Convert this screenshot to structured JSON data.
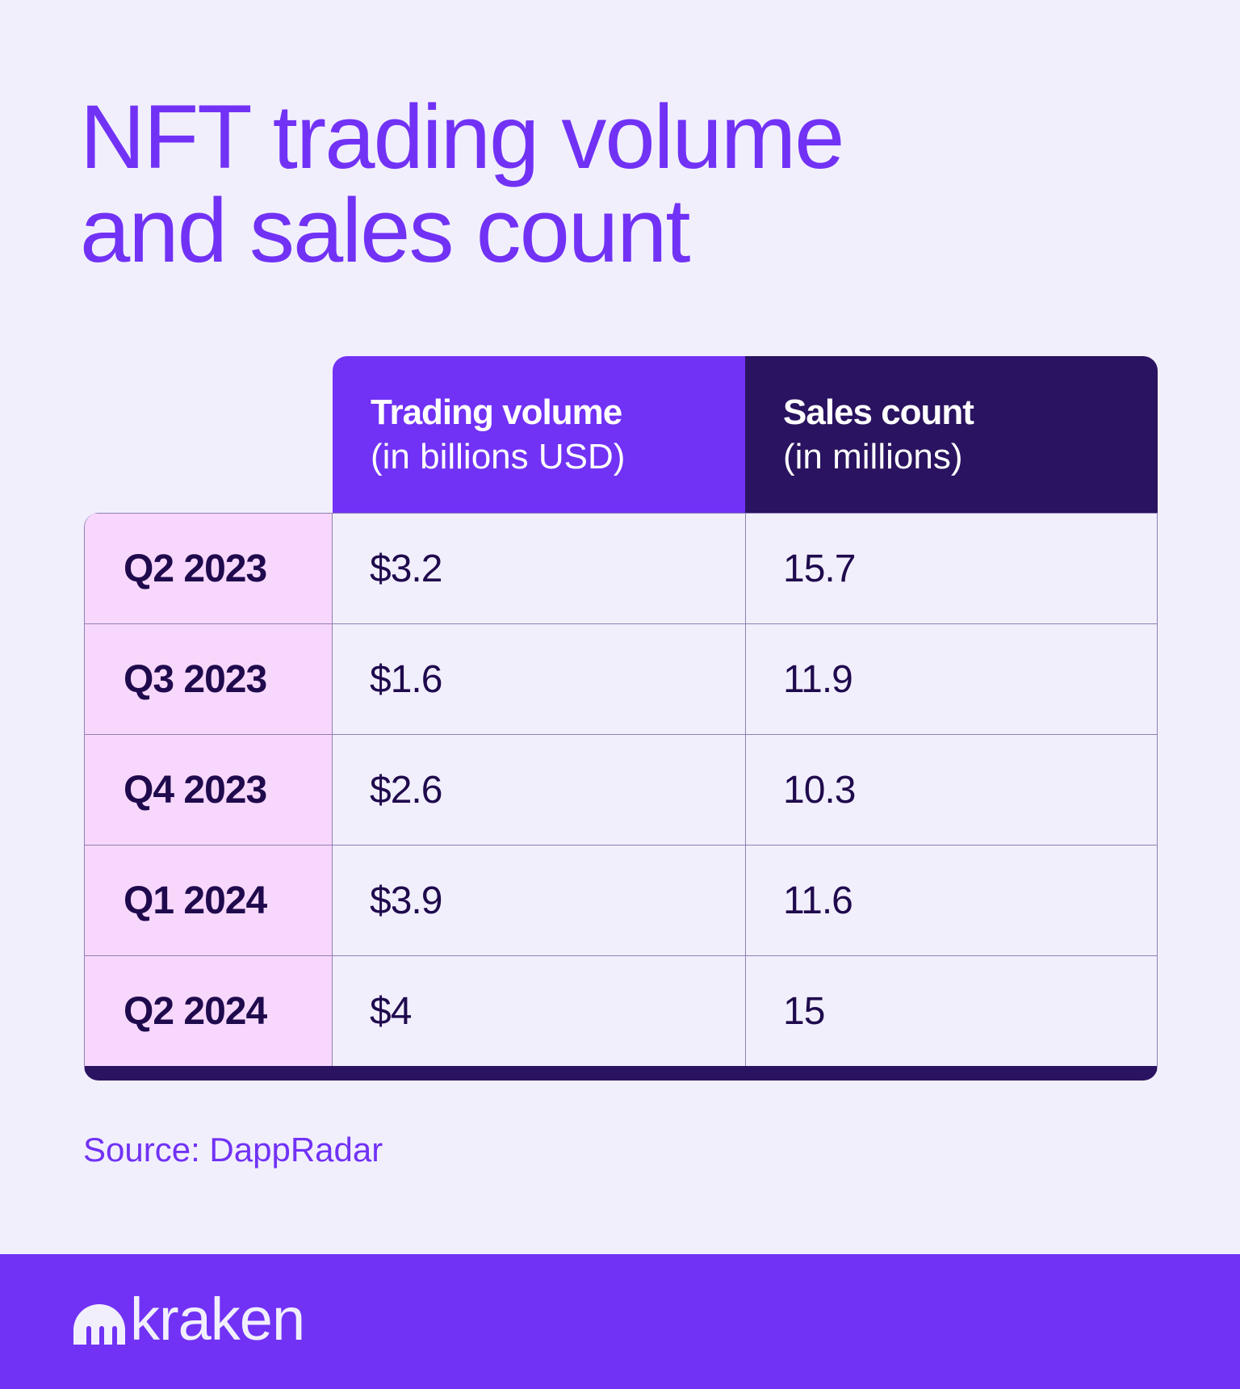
{
  "title": {
    "line1": "NFT trading volume",
    "line2": "and sales count"
  },
  "table": {
    "headers": [
      {
        "bold": "Trading volume",
        "sub": "(in billions USD)"
      },
      {
        "bold": "Sales count",
        "sub": "(in millions)"
      }
    ],
    "rows": [
      {
        "quarter": "Q2 2023",
        "volume": "$3.2",
        "sales": "15.7"
      },
      {
        "quarter": "Q3 2023",
        "volume": "$1.6",
        "sales": "11.9"
      },
      {
        "quarter": "Q4 2023",
        "volume": "$2.6",
        "sales": "10.3"
      },
      {
        "quarter": "Q1 2024",
        "volume": "$3.9",
        "sales": "11.6"
      },
      {
        "quarter": "Q2 2024",
        "volume": "$4",
        "sales": "15"
      }
    ]
  },
  "source": "Source: DappRadar",
  "footer": {
    "logo_text": "kraken",
    "logo_icon": "kraken-logo-icon"
  },
  "colors": {
    "brand": "#7132f5",
    "dark": "#2a1360",
    "pink": "#f8d7fc",
    "background": "#f2effd"
  }
}
